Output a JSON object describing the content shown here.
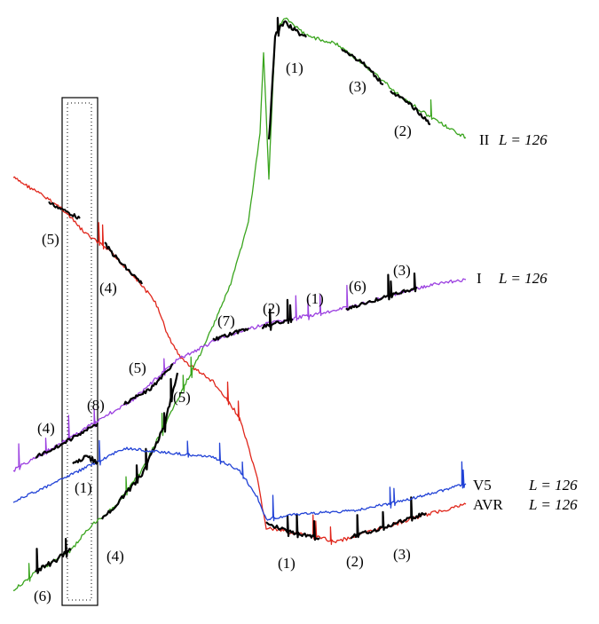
{
  "traces": [
    {
      "name": "II",
      "length_label": "L = 126"
    },
    {
      "name": "I",
      "length_label": "L = 126"
    },
    {
      "name": "V5",
      "length_label": "L = 126"
    },
    {
      "name": "AVR",
      "length_label": "L = 126"
    }
  ],
  "annotations": [
    "(1)",
    "(3)",
    "(2)",
    "(3)",
    "(6)",
    "(1)",
    "(2)",
    "(7)",
    "(5)",
    "(8)",
    "(4)",
    "(5)",
    "(4)",
    "(5)",
    "(1)",
    "(2)",
    "(3)",
    "(1)",
    "(6)",
    "(4)"
  ]
}
